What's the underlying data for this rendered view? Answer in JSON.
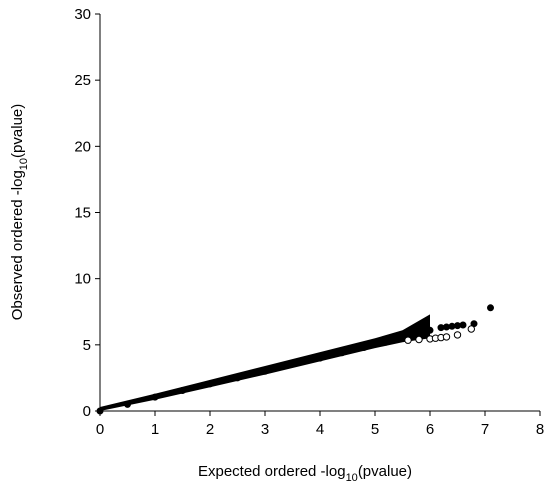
{
  "chart_data": {
    "type": "scatter",
    "title": "",
    "xlabel": {
      "pre": "Expected ordered -log",
      "sub": "10",
      "post": "(pvalue)"
    },
    "ylabel": {
      "pre": "Observed ordered -log",
      "sub": "10",
      "post": "(pvalue)"
    },
    "xlim": [
      0,
      8
    ],
    "ylim": [
      0,
      30
    ],
    "xticks": [
      0,
      1,
      2,
      3,
      4,
      5,
      6,
      7,
      8
    ],
    "yticks": [
      0,
      5,
      10,
      15,
      20,
      25,
      30
    ],
    "grid": false,
    "legend": "none",
    "colors": {
      "observed": "#000000",
      "confidence_band": "#000000"
    },
    "confidence_band": {
      "x": [
        0,
        1,
        2,
        3,
        4,
        5,
        5.5,
        6
      ],
      "upper": [
        0.3,
        1.3,
        2.35,
        3.4,
        4.45,
        5.5,
        6.1,
        7.3
      ],
      "lower": [
        0,
        0.85,
        1.8,
        2.75,
        3.75,
        4.75,
        5.2,
        5.5
      ]
    },
    "series": [
      {
        "marker": "filled-circle",
        "x": [
          0,
          0.5,
          1,
          1.5,
          2,
          2.5,
          3,
          3.3,
          3.6,
          4,
          4.4,
          4.8,
          5.2,
          5.5,
          5.8,
          6,
          6.2,
          6.3,
          6.4,
          6.5,
          6.6,
          6.8,
          7.1
        ],
        "y": [
          0,
          0.5,
          1.05,
          1.55,
          2.05,
          2.5,
          3.0,
          3.35,
          3.7,
          4.0,
          4.4,
          4.8,
          5.2,
          5.5,
          5.85,
          6.1,
          6.3,
          6.35,
          6.4,
          6.45,
          6.5,
          6.6,
          7.8
        ]
      },
      {
        "marker": "open-circle",
        "x": [
          5.6,
          5.8,
          6.0,
          6.1,
          6.2,
          6.3,
          6.5,
          6.75
        ],
        "y": [
          5.35,
          5.4,
          5.45,
          5.5,
          5.55,
          5.6,
          5.75,
          6.2
        ]
      }
    ]
  }
}
